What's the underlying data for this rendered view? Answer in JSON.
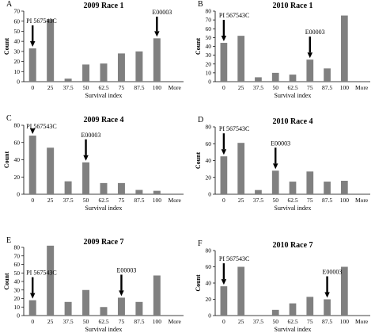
{
  "chart_data": [
    {
      "type": "bar",
      "letter": "A",
      "title": "2009 Race 1",
      "xlabel": "Survival index",
      "ylabel": "Count",
      "categories": [
        "0",
        "25",
        "37.5",
        "50",
        "62.5",
        "75",
        "87.5",
        "100",
        "More"
      ],
      "values": [
        33,
        62,
        3,
        17,
        18,
        28,
        30,
        43,
        0
      ],
      "ylim": [
        0,
        70
      ],
      "yticks": [
        0,
        10,
        20,
        30,
        40,
        50,
        60,
        70
      ],
      "annotations": [
        {
          "label": "PI 567543C",
          "category_index": 0,
          "label_left": true
        },
        {
          "label": "E00003",
          "category_index": 7,
          "label_left": false
        }
      ]
    },
    {
      "type": "bar",
      "letter": "B",
      "title": "2010 Race 1",
      "xlabel": "Survival index",
      "ylabel": "Count",
      "categories": [
        "0",
        "25",
        "37.5",
        "50",
        "62.5",
        "75",
        "87.5",
        "100",
        "More"
      ],
      "values": [
        44,
        52,
        5,
        10,
        8,
        25,
        15,
        75,
        0
      ],
      "ylim": [
        0,
        80
      ],
      "yticks": [
        0,
        10,
        20,
        30,
        40,
        50,
        60,
        70,
        80
      ],
      "annotations": [
        {
          "label": "PI 567543C",
          "category_index": 0,
          "label_left": false
        },
        {
          "label": "E00003",
          "category_index": 5,
          "label_left": false
        }
      ]
    },
    {
      "type": "bar",
      "letter": "C",
      "title": "2009 Race 4",
      "xlabel": "Survival index",
      "ylabel": "Count",
      "categories": [
        "0",
        "25",
        "37.5",
        "50",
        "62.5",
        "75",
        "87.5",
        "100",
        "More"
      ],
      "values": [
        68,
        54,
        15,
        37,
        13,
        13,
        5,
        4,
        0
      ],
      "ylim": [
        0,
        80
      ],
      "yticks": [
        0,
        20,
        40,
        60,
        80
      ],
      "annotations": [
        {
          "label": "PI 567543C",
          "category_index": 0,
          "label_left": true
        },
        {
          "label": "E00003",
          "category_index": 3,
          "label_left": false
        }
      ]
    },
    {
      "type": "bar",
      "letter": "D",
      "title": "2010 Race 4",
      "xlabel": "Survival index",
      "ylabel": "Count",
      "categories": [
        "0",
        "25",
        "37.5",
        "50",
        "62.5",
        "75",
        "87.5",
        "100",
        "More"
      ],
      "values": [
        45,
        61,
        5,
        28,
        15,
        27,
        15,
        16,
        0
      ],
      "ylim": [
        0,
        80
      ],
      "yticks": [
        0,
        20,
        40,
        60,
        80
      ],
      "annotations": [
        {
          "label": "PI 567543C",
          "category_index": 0,
          "label_left": false
        },
        {
          "label": "E00003",
          "category_index": 3,
          "label_left": false
        }
      ]
    },
    {
      "type": "bar",
      "letter": "E",
      "title": "2009 Race 7",
      "xlabel": "Survival index",
      "ylabel": "Count",
      "categories": [
        "0",
        "25",
        "37.5",
        "50",
        "62.5",
        "75",
        "87.5",
        "100",
        "More"
      ],
      "values": [
        18,
        82,
        16,
        30,
        10,
        21,
        16,
        47,
        0
      ],
      "ylim": [
        0,
        80
      ],
      "yticks": [
        0,
        10,
        20,
        30,
        40,
        50,
        60,
        70,
        80
      ],
      "annotations": [
        {
          "label": "PI 567543C",
          "category_index": 0,
          "label_left": true
        },
        {
          "label": "E00003",
          "category_index": 5,
          "label_left": false
        }
      ]
    },
    {
      "type": "bar",
      "letter": "F",
      "title": "2010 Race 7",
      "xlabel": "Survival index",
      "ylabel": "Count",
      "categories": [
        "0",
        "25",
        "37.5",
        "50",
        "62.5",
        "75",
        "87.5",
        "100",
        "More"
      ],
      "values": [
        36,
        60,
        0,
        7,
        15,
        23,
        20,
        60,
        0
      ],
      "ylim": [
        0,
        80
      ],
      "yticks": [
        0,
        20,
        40,
        60,
        80
      ],
      "annotations": [
        {
          "label": "PI 567543C",
          "category_index": 0,
          "label_left": false
        },
        {
          "label": "E00003",
          "category_index": 6,
          "label_left": false
        }
      ]
    }
  ]
}
